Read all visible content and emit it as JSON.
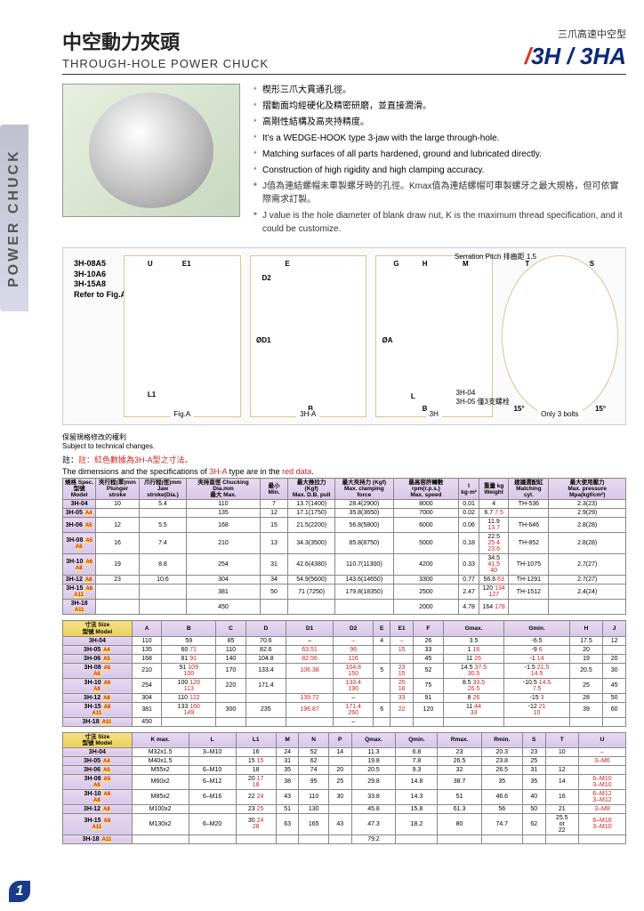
{
  "sidetab": "POWER CHUCK",
  "header": {
    "title_cn": "中空動力夾頭",
    "title_en": "THROUGH-HOLE POWER CHUCK",
    "category": "三爪高速中空型",
    "model": "3H / 3HA"
  },
  "bullets": [
    {
      "cls": "pink",
      "text": "楔形三爪大貫通孔徑。"
    },
    {
      "cls": "pink",
      "text": "摺動面均經硬化及精密研磨，並直接潤滑。"
    },
    {
      "cls": "pink",
      "text": "高剛性結構及高夾持精度。"
    },
    {
      "cls": "pink",
      "text": "It's a WEDGE-HOOK type 3-jaw with the large through-hole."
    },
    {
      "cls": "pink",
      "text": "Matching surfaces of all parts hardened, ground and lubricated directly."
    },
    {
      "cls": "pink",
      "text": "Construction of high rigidity and high clamping accuracy."
    },
    {
      "cls": "green",
      "text": "J值為連結螺帽未車製螺牙時的孔徑。Kmax值為連結螺帽可車製螺牙之最大規格，但可依實際需求訂製。"
    },
    {
      "cls": "green",
      "text": "J value is the hole diameter of blank draw nut, K is the maximum thread specification, and it could be customize."
    }
  ],
  "drawing_labels": [
    "3H-08A5",
    "3H-10A6",
    "3H-15A8",
    "Refer to Fig.A"
  ],
  "drawing_captions": [
    "Fig.A",
    "3H-A",
    "3H",
    "Only 3 bolts"
  ],
  "drawing_note": "3H-04\n3H-05 僅3支螺栓",
  "serration": "Serration Pitch\n排齒距 1.5",
  "tech_note_cn": "保留規格修改的權利",
  "tech_note_en": "Subject to technical changes.",
  "note1": "註：紅色數據為3H-A型之寸法。",
  "note2": "The dimensions and the specifications of 3H-A type are in the red data.",
  "table1": {
    "headers": [
      "規格 Spec.\n型號 Model",
      "夾行程(單)mm\nPlunger stroke",
      "爪行程(徑)mm\nJaw stroke(Dia.)",
      "夾持直徑 Chucking Dia.mm\n最大 Max.",
      "最小 Min.",
      "最大推拉力 (Kgf)\nMax. D.B. pull",
      "最大夾持力 (Kgf)\nMax. clamping force",
      "最高容許轉數 rpm(r.p.s.)\nMax. speed",
      "I\nkg·m²",
      "重量 kg\nWeight",
      "建議選配缸\nMatching cyl.",
      "最大使用壓力\nMax. pressure Mpa(kgf/cm²)"
    ],
    "rows": [
      {
        "model": "3H-04",
        "suf": "",
        "ps": "10",
        "js": "5.4",
        "cdmax": "110",
        "cdmin": "7",
        "dbp": "13.7(1400)",
        "mcf": "28.4(2900)",
        "ms": "8000",
        "i": "0.01",
        "w": "4",
        "mc": "TH-536",
        "mp": "2.3(23)"
      },
      {
        "model": "3H-05",
        "suf": "A4",
        "ps": "",
        "js": "",
        "cdmax": "135",
        "cdmin": "12",
        "dbp": "17.1(1750)",
        "mcf": "35.8(3650)",
        "ms": "7000",
        "i": "0.02",
        "w": "6.7",
        "w2": "7.5",
        "mc": "",
        "mp": "2.9(29)"
      },
      {
        "model": "3H-06",
        "suf": "A5",
        "ps": "12",
        "js": "5.5",
        "cdmax": "168",
        "cdmin": "15",
        "dbp": "21.5(2200)",
        "mcf": "56.8(5800)",
        "ms": "6000",
        "i": "0.06",
        "w": "11.9",
        "w2": "13.7",
        "mc": "TH-646",
        "mp": "2.8(28)"
      },
      {
        "model": "3H-08",
        "suf": "A5\nA6",
        "ps": "16",
        "js": "7.4",
        "cdmax": "210",
        "cdmin": "13",
        "dbp": "34.3(3500)",
        "mcf": "85.8(8750)",
        "ms": "5000",
        "i": "0.18",
        "w": "22.5",
        "w2": "25.4\n23.6",
        "mc": "TH-852",
        "mp": "2.8(28)"
      },
      {
        "model": "3H-10",
        "suf": "A6\nA8",
        "ps": "19",
        "js": "8.8",
        "cdmax": "254",
        "cdmin": "31",
        "dbp": "42.6(4380)",
        "mcf": "110.7(11300)",
        "ms": "4200",
        "i": "0.33",
        "w": "34.5",
        "w2": "41.5\n40",
        "mc": "TH-1075",
        "mp": "2.7(27)"
      },
      {
        "model": "3H-12",
        "suf": "A8",
        "ps": "23",
        "js": "10.6",
        "cdmax": "304",
        "cdmin": "34",
        "dbp": "54.9(5600)",
        "mcf": "143.6(14650)",
        "ms": "3300",
        "i": "0.77",
        "w": "56.6",
        "w2": "63",
        "mc": "TH-1291",
        "mp": "2.7(27)"
      },
      {
        "model": "3H-15",
        "suf": "A8\nA11",
        "ps": "",
        "js": "",
        "cdmax": "381",
        "cdmin": "50",
        "dbp": "71 (7250)",
        "mcf": "179.8(18350)",
        "ms": "2500",
        "i": "2.47",
        "w": "120",
        "w2": "134\n127",
        "mc": "TH-1512",
        "mp": "2.4(24)"
      },
      {
        "model": "3H-18",
        "suf": "A11",
        "ps": "",
        "js": "",
        "cdmax": "450",
        "cdmin": "",
        "dbp": "",
        "mcf": "",
        "ms": "2000",
        "i": "4.78",
        "w": "164",
        "w2": "178",
        "mc": "",
        "mp": ""
      }
    ]
  },
  "table2": {
    "headers": [
      "寸法 Size\n型號 Model",
      "A",
      "B",
      "C",
      "D",
      "D1",
      "D2",
      "E",
      "E1",
      "F",
      "Gmax.",
      "Gmin.",
      "H",
      "J"
    ],
    "rows": [
      {
        "m": "3H-04",
        "s": "",
        "A": "110",
        "B": "59",
        "C": "85",
        "D": "70.6",
        "D1": "–",
        "D2": "–",
        "E": "4",
        "E1": "–",
        "F": "26",
        "Gmax": "3.5",
        "Gmin": "-6.5",
        "H": "17.5",
        "J": "12"
      },
      {
        "m": "3H-05",
        "s": "A4",
        "A": "135",
        "B": "60",
        "Br": "71",
        "C": "110",
        "D": "82.6",
        "D1": "63.51",
        "D2": "96",
        "E": "",
        "E1": "15",
        "F": "33",
        "Gmax": "1",
        "Gmaxr": "16",
        "Gmin": "-9",
        "Gminr": "6",
        "H": "20",
        "J": ""
      },
      {
        "m": "3H-06",
        "s": "A5",
        "A": "168",
        "B": "81",
        "Br": "91",
        "C": "140",
        "D": "104.8",
        "D1": "82.56",
        "D2": "116",
        "E": "",
        "E1": "",
        "F": "45",
        "Gmax": "11",
        "Gmaxr": "26",
        "Gmin": "-1",
        "Gminr": "14",
        "H": "19",
        "J": "20"
      },
      {
        "m": "3H-08",
        "s": "A5\nA6",
        "A": "210",
        "B": "91",
        "Br": "109\n100",
        "C": "170",
        "D": "133.4",
        "D1": "106.38",
        "D2": "104.8\n150",
        "E": "5",
        "E1": "23\n15",
        "F": "52",
        "Gmax": "14.5",
        "Gmaxr": "37.5\n30.5",
        "Gmin": "-1.5",
        "Gminr": "21.5\n14.5",
        "H": "20.5",
        "J": "30"
      },
      {
        "m": "3H-10",
        "s": "A6\nA8",
        "A": "254",
        "B": "100",
        "Br": "120\n113",
        "C": "220",
        "D": "171.4",
        "D1": "",
        "D2": "133.4\n190",
        "E": "",
        "E1": "25\n18",
        "F": "75",
        "Gmax": "8.5",
        "Gmaxr": "33.5\n26.5",
        "Gmin": "-10.5",
        "Gminr": "14.5\n7.5",
        "H": "25",
        "J": "45"
      },
      {
        "m": "3H-12",
        "s": "A8",
        "A": "304",
        "B": "110",
        "Br": "122",
        "C": "",
        "D": "",
        "D1": "139.72",
        "D2": "",
        "E": "",
        "E1": "33",
        "F": "91",
        "Gmax": "8",
        "Gmaxr": "26",
        "Gmin": "-15",
        "Gminr": "3",
        "H": "28",
        "J": "50"
      },
      {
        "m": "3H-15",
        "s": "A8\nA11",
        "A": "381",
        "B": "133",
        "Br": "160\n149",
        "C": "300",
        "D": "235",
        "D1": "196.87",
        "D2": "171.4\n260",
        "E": "6",
        "E1": "22",
        "F": "120",
        "Gmax": "11",
        "Gmaxr": "44\n33",
        "Gmin": "-12",
        "Gminr": "21\n10",
        "H": "39",
        "J": "60"
      },
      {
        "m": "3H-18",
        "s": "A11",
        "A": "450",
        "B": "",
        "C": "",
        "D": "",
        "D1": "",
        "D2": "",
        "E": "",
        "E1": "",
        "F": "",
        "Gmax": "",
        "Gmin": "",
        "H": "",
        "J": ""
      }
    ]
  },
  "table3": {
    "headers": [
      "寸法 Size\n型號 Model",
      "K max.",
      "L",
      "L1",
      "M",
      "N",
      "P",
      "Qmax.",
      "Qmin.",
      "Rmax.",
      "Rmin.",
      "S",
      "T",
      "U"
    ],
    "rows": [
      {
        "m": "3H-04",
        "s": "",
        "K": "M32x1.5",
        "L": "3–M10",
        "L1": "16",
        "M": "24",
        "N": "52",
        "P": "14",
        "Qmax": "11.3",
        "Qmin": "6.8",
        "Rmax": "23",
        "Rmin": "20.3",
        "S": "23",
        "T": "10",
        "U": "–"
      },
      {
        "m": "3H-05",
        "s": "A4",
        "K": "M40x1.5",
        "L": "",
        "L1": "15",
        "L1r": "15",
        "M": "31",
        "N": "62",
        "P": "",
        "Qmax": "19.8",
        "Qmin": "7.8",
        "Rmax": "26.5",
        "Rmin": "23.8",
        "S": "25",
        "T": "",
        "U": "3–M6"
      },
      {
        "m": "3H-06",
        "s": "A5",
        "K": "M55x2",
        "L": "6–M10",
        "L1": "18",
        "M": "35",
        "N": "74",
        "P": "20",
        "Qmax": "20.5",
        "Qmin": "9.3",
        "Rmax": "32",
        "Rmin": "26.5",
        "S": "31",
        "T": "12",
        "U": ""
      },
      {
        "m": "3H-08",
        "s": "A5\nA6",
        "K": "M60x2",
        "L": "6–M12",
        "L1": "20",
        "L1r": "17\n18",
        "M": "38",
        "N": "95",
        "P": "25",
        "Qmax": "29.8",
        "Qmin": "14.8",
        "Rmax": "38.7",
        "Rmin": "35",
        "S": "35",
        "T": "14",
        "U": "6–M10\n3–M10"
      },
      {
        "m": "3H-10",
        "s": "A6\nA8",
        "K": "M85x2",
        "L": "6–M16",
        "L1": "22",
        "L1r": "24",
        "M": "43",
        "N": "110",
        "P": "30",
        "Qmax": "33.8",
        "Qmin": "14.3",
        "Rmax": "51",
        "Rmin": "46.6",
        "S": "40",
        "T": "16",
        "U": "6–M12\n3–M12"
      },
      {
        "m": "3H-12",
        "s": "A8",
        "K": "M100x2",
        "L": "",
        "L1": "23",
        "L1r": "25",
        "M": "51",
        "N": "130",
        "P": "",
        "Qmax": "45.8",
        "Qmin": "15.8",
        "Rmax": "61.3",
        "Rmin": "56",
        "S": "50",
        "T": "21",
        "U": "3–M8"
      },
      {
        "m": "3H-15",
        "s": "A8\nA11",
        "K": "M130x2",
        "L": "6–M20",
        "L1": "30",
        "L1r": "24\n28",
        "M": "63",
        "N": "165",
        "P": "43",
        "Qmax": "47.3",
        "Qmin": "18.2",
        "Rmax": "80",
        "Rmin": "74.7",
        "S": "62",
        "T": "25.5\nor\n22",
        "U": "6–M16\n3–M10"
      },
      {
        "m": "3H-18",
        "s": "A11",
        "K": "",
        "L": "",
        "L1": "",
        "M": "",
        "N": "",
        "P": "",
        "Qmax": "79.2",
        "Qmin": "",
        "Rmax": "",
        "Rmin": "",
        "S": "",
        "T": "",
        "U": ""
      }
    ]
  },
  "page_num": "1"
}
